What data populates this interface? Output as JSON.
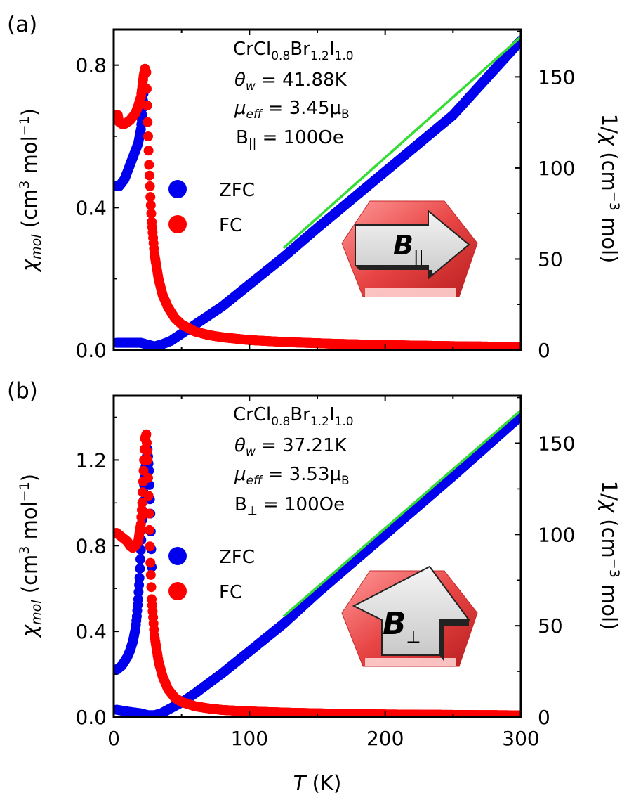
{
  "figure": {
    "x_axis_label_italic": "T",
    "x_axis_label_rest": " (K)"
  },
  "colors": {
    "zfc": "#0000ee",
    "fc": "#ff0000",
    "fit": "#33dd33",
    "frame": "#000000",
    "inset_red": "#e84545",
    "inset_arrow": "#d9d9d9"
  },
  "chart_data": [
    {
      "type": "scatter",
      "panel_label": "(a)",
      "compound": {
        "base": "CrCl",
        "s1": "0.8",
        "mid": "Br",
        "s2": "1.2",
        "end": "I",
        "s3": "1.0"
      },
      "annotations": {
        "theta_w": "41.88K",
        "mu_eff": "3.45",
        "mu_unit": "B",
        "field_sub": "||",
        "field_value": "100Oe"
      },
      "inset_label": "B",
      "inset_sub": "||",
      "inset_arrow": "right",
      "legend": [
        "ZFC",
        "FC"
      ],
      "xlabel": "T (K)",
      "ylabel_left": "χmol (cm3 mol−1)",
      "ylabel_right": "1/χ (cm−3 mol)",
      "xlim": [
        0,
        300
      ],
      "ylim_left": [
        0,
        0.9
      ],
      "ylim_right": [
        0,
        176
      ],
      "yticks_left": [
        "0.0",
        "0.4",
        "0.8"
      ],
      "yticks_left_values": [
        0,
        0.4,
        0.8
      ],
      "yticks_right": [
        "0",
        "50",
        "100",
        "150"
      ],
      "yticks_right_values": [
        0,
        50,
        100,
        150
      ],
      "series": [
        {
          "name": "FC",
          "axis": "left",
          "x": [
            2,
            3,
            4,
            6,
            8,
            10,
            12,
            14,
            16,
            18,
            20,
            21,
            22,
            23,
            24,
            25,
            26,
            27,
            28,
            30,
            33,
            36,
            40,
            45,
            50,
            60,
            70,
            80,
            100,
            130,
            160,
            200,
            250,
            300
          ],
          "y": [
            0.66,
            0.66,
            0.64,
            0.635,
            0.635,
            0.64,
            0.645,
            0.655,
            0.665,
            0.685,
            0.71,
            0.74,
            0.77,
            0.79,
            0.78,
            0.64,
            0.52,
            0.43,
            0.36,
            0.27,
            0.2,
            0.155,
            0.12,
            0.09,
            0.072,
            0.052,
            0.042,
            0.036,
            0.028,
            0.022,
            0.018,
            0.014,
            0.011,
            0.009
          ]
        },
        {
          "name": "ZFC",
          "axis": "left",
          "x": [
            2,
            4,
            6,
            8,
            10,
            12,
            14,
            16,
            18,
            20,
            21,
            22
          ],
          "y": [
            0.46,
            0.46,
            0.47,
            0.48,
            0.5,
            0.52,
            0.54,
            0.56,
            0.58,
            0.62,
            0.66,
            0.72
          ]
        },
        {
          "name": "1/χ (ZFC)",
          "axis": "right",
          "x": [
            2,
            10,
            20,
            25,
            30,
            35,
            42,
            50,
            60,
            80,
            100,
            125,
            150,
            200,
            250,
            300
          ],
          "y": [
            4,
            4,
            4,
            3,
            2,
            3,
            5,
            9,
            14,
            24,
            36,
            51,
            67,
            98,
            129,
            170
          ]
        },
        {
          "name": "Curie-Weiss fit",
          "axis": "right",
          "x": [
            125,
            300
          ],
          "y": [
            56,
            172
          ]
        }
      ]
    },
    {
      "type": "scatter",
      "panel_label": "(b)",
      "compound": {
        "base": "CrCl",
        "s1": "0.8",
        "mid": "Br",
        "s2": "1.2",
        "end": "I",
        "s3": "1.0"
      },
      "annotations": {
        "theta_w": "37.21K",
        "mu_eff": "3.53",
        "mu_unit": "B",
        "field_sub": "⊥",
        "field_value": "100Oe"
      },
      "inset_label": "B",
      "inset_sub": "⊥",
      "inset_arrow": "up",
      "legend": [
        "ZFC",
        "FC"
      ],
      "xlabel": "T (K)",
      "ylabel_left": "χmol (cm3 mol−1)",
      "ylabel_right": "1/χ (cm−3 mol)",
      "xlim": [
        0,
        300
      ],
      "ylim_left": [
        0,
        1.5
      ],
      "ylim_right": [
        0,
        176
      ],
      "yticks_left": [
        "0.0",
        "0.4",
        "0.8",
        "1.2"
      ],
      "yticks_left_values": [
        0,
        0.4,
        0.8,
        1.2
      ],
      "yticks_right": [
        "0",
        "50",
        "100",
        "150"
      ],
      "yticks_right_values": [
        0,
        50,
        100,
        150
      ],
      "xticks": [
        "0",
        "100",
        "200",
        "300"
      ],
      "xticks_values": [
        0,
        100,
        200,
        300
      ],
      "series": [
        {
          "name": "FC",
          "axis": "left",
          "x": [
            2,
            4,
            6,
            8,
            10,
            12,
            14,
            16,
            18,
            20,
            21,
            22,
            23,
            24,
            25,
            26,
            27,
            28,
            30,
            33,
            36,
            40,
            45,
            50,
            60,
            70,
            80,
            100,
            130,
            160,
            200,
            250,
            300
          ],
          "y": [
            0.86,
            0.85,
            0.84,
            0.83,
            0.82,
            0.8,
            0.79,
            0.8,
            0.82,
            0.9,
            1.0,
            1.15,
            1.3,
            1.32,
            1.2,
            0.95,
            0.72,
            0.55,
            0.38,
            0.26,
            0.19,
            0.13,
            0.09,
            0.07,
            0.05,
            0.04,
            0.033,
            0.026,
            0.02,
            0.016,
            0.012,
            0.01,
            0.008
          ]
        },
        {
          "name": "ZFC",
          "axis": "left",
          "x": [
            2,
            4,
            6,
            8,
            10,
            12,
            14,
            16,
            17,
            18,
            19,
            20,
            21,
            22,
            23,
            24,
            25,
            26,
            27,
            28
          ],
          "y": [
            0.22,
            0.23,
            0.24,
            0.26,
            0.28,
            0.31,
            0.35,
            0.41,
            0.47,
            0.55,
            0.65,
            0.78,
            0.92,
            1.05,
            1.15,
            1.2,
            1.25,
            1.15,
            0.95,
            0.7
          ]
        },
        {
          "name": "1/χ (ZFC)",
          "axis": "right",
          "x": [
            2,
            10,
            20,
            25,
            30,
            35,
            40,
            50,
            60,
            80,
            100,
            125,
            150,
            200,
            250,
            300
          ],
          "y": [
            4,
            3,
            2,
            1,
            1,
            2,
            4,
            8,
            13,
            24,
            36,
            51,
            68,
            100,
            132,
            165
          ]
        },
        {
          "name": "Curie-Weiss fit",
          "axis": "right",
          "x": [
            125,
            300
          ],
          "y": [
            55,
            168
          ]
        }
      ]
    }
  ]
}
